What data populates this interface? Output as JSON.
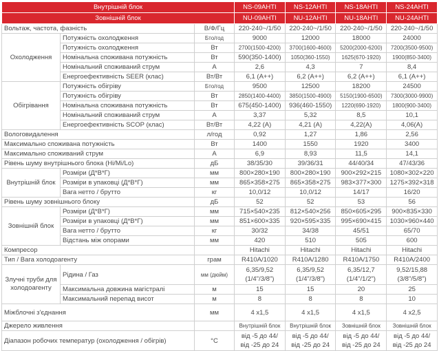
{
  "header": {
    "inner_label": "Внутрішній блок",
    "outer_label": "Зовнішній блок",
    "inner_models": [
      "NS-09AHTI",
      "NS-12AHTI",
      "NS-18AHTI",
      "NS-24AHTI"
    ],
    "outer_models": [
      "NU-09AHTI",
      "NU-12AHTI",
      "NU-18AHTI",
      "NU-24AHTI"
    ],
    "header_color": "#d9272e"
  },
  "items": [
    {
      "label": "Вольтаж, частота, фазність",
      "unit": "В/Ф/Гц",
      "values": [
        "220-240~/1/50",
        "220-240~/1/50",
        "220-240~/1/50",
        "220-240~/1/50"
      ]
    },
    {
      "group": "Охолодження",
      "rows": [
        {
          "label": "Потужність охолодження",
          "unit": "Бто/год",
          "values": [
            "9000",
            "12000",
            "18000",
            "24000"
          ]
        },
        {
          "label": "Потужність охолодження",
          "unit": "Вт",
          "values": [
            "2700(1500-4200)",
            "3700(1600-4600)",
            "5200(2000-6200)",
            "7200(3500-9500)"
          ]
        },
        {
          "label": "Номінальна споживана потужність",
          "unit": "Вт",
          "values": [
            "590(350-1400)",
            "1050(360-1550)",
            "1625(670-1920)",
            "1900(850-3400)"
          ]
        },
        {
          "label": "Номінальний споживаний струм",
          "unit": "А",
          "values": [
            "2,6",
            "4,3",
            "7",
            "8,4"
          ]
        },
        {
          "label": "Енергоефективність SEER (клас)",
          "unit": "Вт/Вт",
          "values": [
            "6,1 (A++)",
            "6,2 (A++)",
            "6,2 (A++)",
            "6,1 (A++)"
          ]
        }
      ]
    },
    {
      "group": "Обігрівання",
      "rows": [
        {
          "label": "Потужність обігріву",
          "unit": "Бто/год",
          "values": [
            "9500",
            "12500",
            "18200",
            "24500"
          ]
        },
        {
          "label": "Потужність обігріву",
          "unit": "Вт",
          "values": [
            "2850(1400-4400)",
            "3850(1500-4900)",
            "5150(1900-6500)",
            "7300(3000-9900)"
          ]
        },
        {
          "label": "Номінальна споживана потужність",
          "unit": "Вт",
          "values": [
            "675(450-1400)",
            "936(460-1550)",
            "1220(690-1920)",
            "1800(900-3400)"
          ]
        },
        {
          "label": "Номінальний споживаний струм",
          "unit": "А",
          "values": [
            "3,37",
            "5,32",
            "8,5",
            "10,1"
          ]
        },
        {
          "label": "Енергоефективність SCOP (клас)",
          "unit": "Вт/Вт",
          "values": [
            "4,22 (A)",
            "4,21 (A)",
            "4,22(A)",
            "4,06(A)"
          ]
        }
      ]
    },
    {
      "label": "Вологовидалення",
      "unit": "л/год",
      "values": [
        "0,92",
        "1,27",
        "1,86",
        "2,56"
      ]
    },
    {
      "label": "Максимально споживана потужність",
      "unit": "Вт",
      "values": [
        "1400",
        "1550",
        "1920",
        "3400"
      ]
    },
    {
      "label": "Максимально споживаний струм",
      "unit": "А",
      "values": [
        "6,9",
        "8,93",
        "11,5",
        "14,1"
      ]
    },
    {
      "label": "Рівень шуму внутрішнього блока (Hi/Mi/Lo)",
      "unit": "дБ",
      "values": [
        "38/35/30",
        "39/36/31",
        "44/40/34",
        "47/43/36"
      ]
    },
    {
      "group": "Внутрішній блок",
      "rows": [
        {
          "label": "Розміри (Д*В*Г)",
          "unit": "мм",
          "values": [
            "800×280×190",
            "800×280×190",
            "900×292×215",
            "1080×302×220"
          ]
        },
        {
          "label": "Розміри в упаковці (Д*В*Г)",
          "unit": "мм",
          "values": [
            "865×358×275",
            "865×358×275",
            "983×377×300",
            "1275×392×318"
          ]
        },
        {
          "label": "Вага нетто / брутто",
          "unit": "кг",
          "values": [
            "10,0/12",
            "10,0/12",
            "14/17",
            "16/20"
          ]
        }
      ]
    },
    {
      "label": "Рівень шуму зовнішнього блоку",
      "unit": "дБ",
      "values": [
        "52",
        "52",
        "53",
        "56"
      ]
    },
    {
      "group": "Зовнішній блок",
      "rows": [
        {
          "label": "Розміри (Д*В*Г)",
          "unit": "мм",
          "values": [
            "715×540×235",
            "812×540×256",
            "850×605×295",
            "900×835×330"
          ]
        },
        {
          "label": "Розміри в упаковці (Д*В*Г)",
          "unit": "мм",
          "values": [
            "851×600×335",
            "920×595×335",
            "995×690×415",
            "1030×960×440"
          ]
        },
        {
          "label": "Вага нетто / брутто",
          "unit": "кг",
          "values": [
            "30/32",
            "34/38",
            "45/51",
            "65/70"
          ]
        },
        {
          "label": "Відстань між опорами",
          "unit": "мм",
          "values": [
            "420",
            "510",
            "505",
            "600"
          ]
        }
      ]
    },
    {
      "label": "Компресор",
      "unit": "",
      "values": [
        "Hitachi",
        "Hitachi",
        "Hitachi",
        "Hitachi"
      ]
    },
    {
      "label": "Тип / Вага холодоагенту",
      "unit": "грам",
      "values": [
        "R410A/1020",
        "R410A/1280",
        "R410A/1750",
        "R410A/2400"
      ]
    },
    {
      "group": "Злучні труби для холодоагенту",
      "rows": [
        {
          "label": "Рідина / Газ",
          "unit": "мм (дюйм)",
          "values": [
            "6,35/9,52\n(1/4\"/3/8\")",
            "6,35/9,52\n(1/4\"/3/8\")",
            "6,35/12,7\n(1/4\"/1/2\")",
            "9,52/15,88\n(3/8\"/5/8\")"
          ]
        },
        {
          "label": "Максимальна довжина магістралі",
          "unit": "м",
          "values": [
            "15",
            "15",
            "20",
            "25"
          ]
        },
        {
          "label": "Максимальний перепад висот",
          "unit": "м",
          "values": [
            "8",
            "8",
            "8",
            "10"
          ]
        }
      ]
    },
    {
      "label": "Міжблочні з'єднання",
      "unit": "мм",
      "values": [
        "4 x1,5",
        "4 x1,5",
        "4 x1,5",
        "4 x2,5"
      ]
    },
    {
      "label": "Джерело живлення",
      "unit": "",
      "values": [
        "Внутрішній блок",
        "Внутрішній блок",
        "Зовнішній блок",
        "Зовнішній блок"
      ]
    },
    {
      "label": "Діапазон робочих температур (охолодження / обігрів)",
      "unit": "°C",
      "values": [
        "від -5 до 44/\nвід -25 до 24",
        "від -5 до 44/\nвід -25 до 24",
        "від -5 до 44/\nвід -25 до 24",
        "від -5 до 44/\nвід -25 до 24"
      ]
    }
  ]
}
